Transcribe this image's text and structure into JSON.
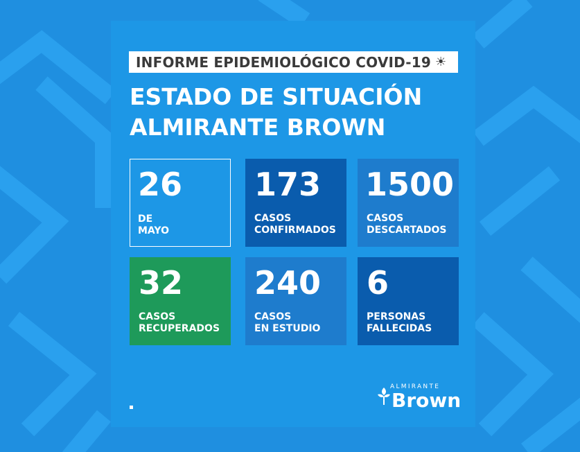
{
  "header": {
    "label": "INFORME EPIDEMIOLÓGICO COVID-19",
    "icon": "virus-icon"
  },
  "title": {
    "line1": "ESTADO DE SITUACIÓN",
    "line2": "ALMIRANTE BROWN"
  },
  "stats": [
    {
      "value": "26",
      "label": "DE\nMAYO",
      "style": "outline"
    },
    {
      "value": "173",
      "label": "CASOS\nCONFIRMADOS",
      "style": "dark"
    },
    {
      "value": "1500",
      "label": "CASOS\nDESCARTADOS",
      "style": "mid"
    },
    {
      "value": "32",
      "label": "CASOS\nRECUPERADOS",
      "style": "green"
    },
    {
      "value": "240",
      "label": "CASOS\nEN ESTUDIO",
      "style": "mid"
    },
    {
      "value": "6",
      "label": "PERSONAS\nFALLECIDAS",
      "style": "dark"
    }
  ],
  "logo": {
    "top": "ALMIRANTE",
    "main": "Brown"
  },
  "colors": {
    "background": "#1f8fe0",
    "panel": "#1d97e6",
    "dark_card": "#0a5cad",
    "mid_card": "#1e7ccd",
    "green_card": "#1e9a5a"
  }
}
